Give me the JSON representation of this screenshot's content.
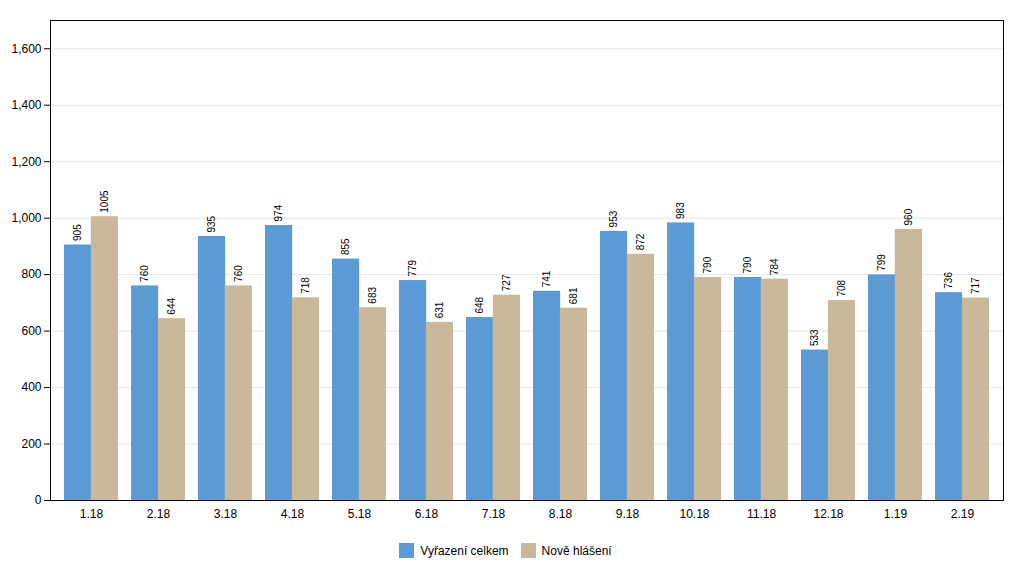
{
  "chart_data": {
    "type": "bar",
    "categories": [
      "1.18",
      "2.18",
      "3.18",
      "4.18",
      "5.18",
      "6.18",
      "7.18",
      "8.18",
      "9.18",
      "10.18",
      "11.18",
      "12.18",
      "1.19",
      "2.19"
    ],
    "series": [
      {
        "name": "Vyřazení celkem",
        "color": "#5B9BD5",
        "values": [
          905,
          760,
          935,
          974,
          855,
          779,
          648,
          741,
          953,
          983,
          790,
          533,
          799,
          736
        ]
      },
      {
        "name": "Nově hlášení",
        "color": "#C9B99A",
        "values": [
          1005,
          644,
          760,
          718,
          683,
          631,
          727,
          681,
          872,
          790,
          784,
          708,
          960,
          717
        ]
      }
    ],
    "ylim": [
      0,
      1700
    ],
    "yticks": [
      0,
      200,
      400,
      600,
      800,
      1000,
      1200,
      1400,
      1600
    ],
    "grid": true,
    "data_labels": true,
    "legend": "bottom"
  }
}
